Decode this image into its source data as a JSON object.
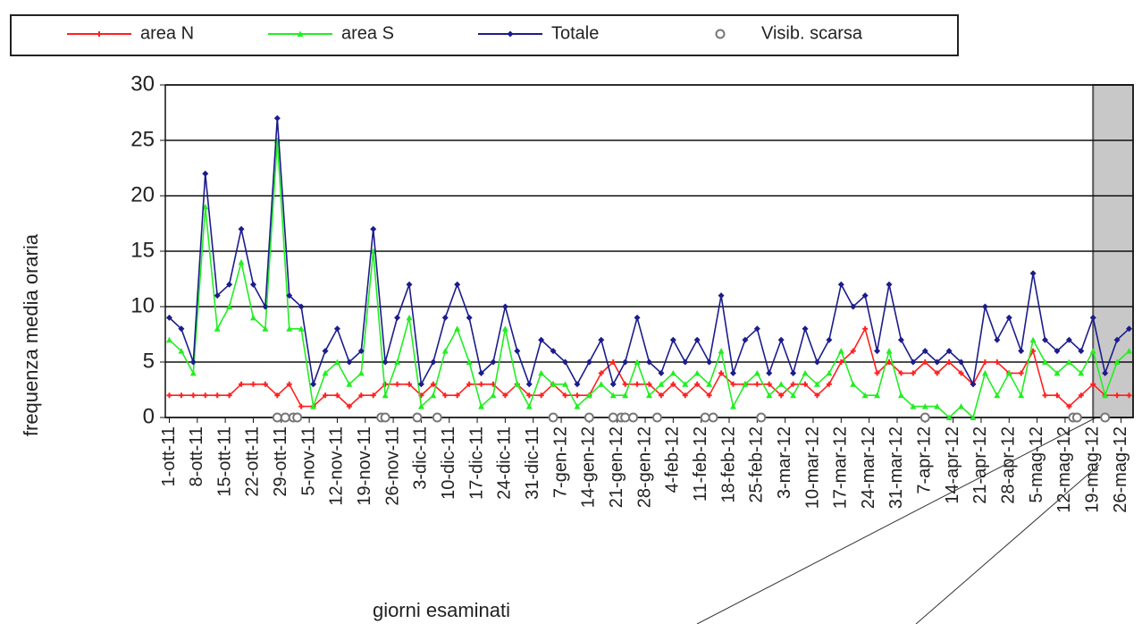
{
  "chart_data": {
    "type": "line",
    "x_label": "giorni esaminati",
    "y_label": "frequenza media oraria",
    "xlim": [
      -1,
      241
    ],
    "ylim": [
      0,
      30
    ],
    "yticks": [
      0,
      5,
      10,
      15,
      20,
      25,
      30
    ],
    "grid": true,
    "legend": "top",
    "shaded_range": [
      231,
      241
    ],
    "xticks": [
      {
        "value": 0,
        "label": "1-ott-11"
      },
      {
        "value": 7,
        "label": "8-ott-11"
      },
      {
        "value": 14,
        "label": "15-ott-11"
      },
      {
        "value": 21,
        "label": "22-ott-11"
      },
      {
        "value": 28,
        "label": "29-ott-11"
      },
      {
        "value": 35,
        "label": "5-nov-11"
      },
      {
        "value": 42,
        "label": "12-nov-11"
      },
      {
        "value": 49,
        "label": "19-nov-11"
      },
      {
        "value": 56,
        "label": "26-nov-11"
      },
      {
        "value": 63,
        "label": "3-dic-11"
      },
      {
        "value": 70,
        "label": "10-dic-11"
      },
      {
        "value": 77,
        "label": "17-dic-11"
      },
      {
        "value": 84,
        "label": "24-dic-11"
      },
      {
        "value": 91,
        "label": "31-dic-11"
      },
      {
        "value": 98,
        "label": "7-gen-12"
      },
      {
        "value": 105,
        "label": "14-gen-12"
      },
      {
        "value": 112,
        "label": "21-gen-12"
      },
      {
        "value": 119,
        "label": "28-gen-12"
      },
      {
        "value": 126,
        "label": "4-feb-12"
      },
      {
        "value": 133,
        "label": "11-feb-12"
      },
      {
        "value": 140,
        "label": "18-feb-12"
      },
      {
        "value": 147,
        "label": "25-feb-12"
      },
      {
        "value": 154,
        "label": "3-mar-12"
      },
      {
        "value": 161,
        "label": "10-mar-12"
      },
      {
        "value": 168,
        "label": "17-mar-12"
      },
      {
        "value": 175,
        "label": "24-mar-12"
      },
      {
        "value": 182,
        "label": "31-mar-12"
      },
      {
        "value": 189,
        "label": "7-apr-12"
      },
      {
        "value": 196,
        "label": "14-apr-12"
      },
      {
        "value": 203,
        "label": "21-apr-12"
      },
      {
        "value": 210,
        "label": "28-apr-12"
      },
      {
        "value": 217,
        "label": "5-mag-12"
      },
      {
        "value": 224,
        "label": "12-mag-12"
      },
      {
        "value": 231,
        "label": "19-mag-12"
      },
      {
        "value": 238,
        "label": "26-mag-12"
      }
    ],
    "x": [
      0,
      3,
      6,
      9,
      12,
      15,
      18,
      21,
      24,
      27,
      30,
      33,
      36,
      39,
      42,
      45,
      48,
      51,
      54,
      57,
      60,
      63,
      66,
      69,
      72,
      75,
      78,
      81,
      84,
      87,
      90,
      93,
      96,
      99,
      102,
      105,
      108,
      111,
      114,
      117,
      120,
      123,
      126,
      129,
      132,
      135,
      138,
      141,
      144,
      147,
      150,
      153,
      156,
      159,
      162,
      165,
      168,
      171,
      174,
      177,
      180,
      183,
      186,
      189,
      192,
      195,
      198,
      201,
      204,
      207,
      210,
      213,
      216,
      219,
      222,
      225,
      228,
      231,
      234,
      237,
      240
    ],
    "series": [
      {
        "name": "area N",
        "color": "#ff2020",
        "marker": "plus",
        "values": [
          2,
          2,
          2,
          2,
          2,
          2,
          3,
          3,
          3,
          2,
          3,
          1,
          1,
          2,
          2,
          1,
          2,
          2,
          3,
          3,
          3,
          2,
          3,
          2,
          2,
          3,
          3,
          3,
          2,
          3,
          2,
          2,
          3,
          2,
          2,
          2,
          4,
          5,
          3,
          3,
          3,
          2,
          3,
          2,
          3,
          2,
          4,
          3,
          3,
          3,
          3,
          2,
          3,
          3,
          2,
          3,
          5,
          6,
          8,
          4,
          5,
          4,
          4,
          5,
          4,
          5,
          4,
          3,
          5,
          5,
          4,
          4,
          6,
          2,
          2,
          1,
          2,
          3,
          2,
          2,
          2
        ]
      },
      {
        "name": "area S",
        "color": "#22ee22",
        "marker": "triangle",
        "values": [
          7,
          6,
          4,
          19,
          8,
          10,
          14,
          9,
          8,
          25,
          8,
          8,
          1,
          4,
          5,
          3,
          4,
          15,
          2,
          5,
          9,
          1,
          2,
          6,
          8,
          5,
          1,
          2,
          8,
          3,
          1,
          4,
          3,
          3,
          1,
          2,
          3,
          2,
          2,
          5,
          2,
          3,
          4,
          3,
          4,
          3,
          6,
          1,
          3,
          4,
          2,
          3,
          2,
          4,
          3,
          4,
          6,
          3,
          2,
          2,
          6,
          2,
          1,
          1,
          1,
          0,
          1,
          0,
          4,
          2,
          4,
          2,
          7,
          5,
          4,
          5,
          4,
          6,
          2,
          5,
          6
        ]
      },
      {
        "name": "Totale",
        "color": "#1c1c8c",
        "marker": "diamond",
        "values": [
          9,
          8,
          5,
          22,
          11,
          12,
          17,
          12,
          10,
          27,
          11,
          10,
          3,
          6,
          8,
          5,
          6,
          17,
          5,
          9,
          12,
          3,
          5,
          9,
          12,
          9,
          4,
          5,
          10,
          6,
          3,
          7,
          6,
          5,
          3,
          5,
          7,
          3,
          5,
          9,
          5,
          4,
          7,
          5,
          7,
          5,
          11,
          4,
          7,
          8,
          4,
          7,
          4,
          8,
          5,
          7,
          12,
          10,
          11,
          6,
          12,
          7,
          5,
          6,
          5,
          6,
          5,
          3,
          10,
          7,
          9,
          6,
          13,
          7,
          6,
          7,
          6,
          9,
          4,
          7,
          8
        ]
      },
      {
        "name": "Visib. scarsa",
        "color": "#777777",
        "marker": "circle",
        "scatter": true,
        "x": [
          27,
          29,
          31,
          32,
          53,
          54,
          62,
          67,
          96,
          105,
          111,
          113,
          114,
          116,
          122,
          134,
          136,
          148,
          189,
          226,
          227,
          234
        ],
        "values": [
          0,
          0,
          0,
          0,
          0,
          0,
          0,
          0,
          0,
          0,
          0,
          0,
          0,
          0,
          0,
          0,
          0,
          0,
          0,
          0,
          0,
          0
        ]
      }
    ]
  }
}
